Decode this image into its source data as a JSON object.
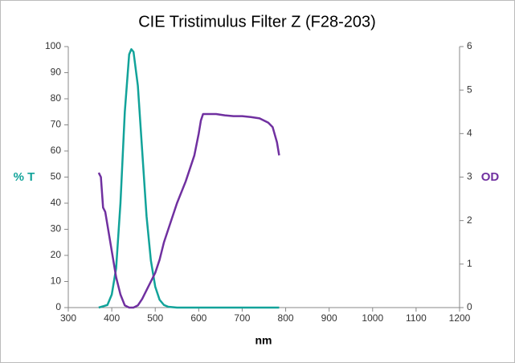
{
  "chart_data": {
    "type": "line",
    "title": "CIE Tristimulus Filter Z (F28-203)",
    "x_label": "nm",
    "y_label": "% T",
    "y2_label": "OD",
    "xlim": [
      300,
      1200
    ],
    "xticks": [
      300,
      400,
      500,
      600,
      700,
      800,
      900,
      1000,
      1100,
      1200
    ],
    "ylim": [
      0,
      100
    ],
    "yticks": [
      0,
      10,
      20,
      30,
      40,
      50,
      60,
      70,
      80,
      90,
      100
    ],
    "y2lim": [
      0,
      6
    ],
    "y2ticks": [
      0,
      1,
      2,
      3,
      4,
      5,
      6
    ],
    "grid": false,
    "series": [
      {
        "name": "% T",
        "color": "#12a39a",
        "x": [
          370,
          390,
          400,
          410,
          420,
          430,
          440,
          445,
          450,
          460,
          470,
          480,
          490,
          500,
          510,
          520,
          530,
          550,
          600,
          700,
          785
        ],
        "values": [
          0,
          1,
          5,
          15,
          40,
          75,
          97,
          99,
          98,
          85,
          60,
          35,
          18,
          8,
          3,
          1,
          0.3,
          0,
          0,
          0,
          0
        ]
      },
      {
        "name": "OD",
        "color": "#7030a0",
        "axis": "y2",
        "x": [
          370,
          375,
          380,
          385,
          390,
          400,
          410,
          420,
          430,
          440,
          450,
          460,
          470,
          480,
          490,
          500,
          510,
          520,
          530,
          550,
          570,
          580,
          590,
          600,
          605,
          610,
          620,
          640,
          660,
          680,
          700,
          720,
          740,
          760,
          770,
          780,
          785
        ],
        "values": [
          3.1,
          3.0,
          2.3,
          2.2,
          1.9,
          1.3,
          0.7,
          0.3,
          0.05,
          0,
          0,
          0.05,
          0.2,
          0.4,
          0.6,
          0.8,
          1.1,
          1.5,
          1.8,
          2.4,
          2.9,
          3.2,
          3.5,
          4.0,
          4.3,
          4.45,
          4.45,
          4.45,
          4.42,
          4.4,
          4.4,
          4.38,
          4.35,
          4.25,
          4.15,
          3.8,
          3.5
        ]
      }
    ]
  }
}
